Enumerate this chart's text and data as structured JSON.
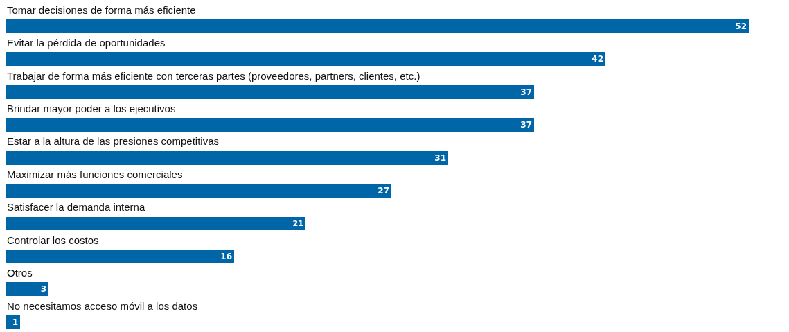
{
  "chart_data": {
    "type": "bar",
    "orientation": "horizontal",
    "categories": [
      "Tomar decisiones de forma más eficiente",
      "Evitar la pérdida de oportunidades",
      "Trabajar de forma más eficiente con terceras partes (proveedores, partners, clientes, etc.)",
      "Brindar mayor poder a los ejecutivos",
      "Estar a la altura de las presiones competitivas",
      "Maximizar más funciones comerciales",
      "Satisfacer la demanda interna",
      "Controlar los costos",
      "Otros",
      "No necesitamos acceso móvil a los datos"
    ],
    "values": [
      52,
      42,
      37,
      37,
      31,
      27,
      21,
      16,
      3,
      1
    ],
    "color": "#0066a8",
    "data_labels": true,
    "legend": false
  }
}
